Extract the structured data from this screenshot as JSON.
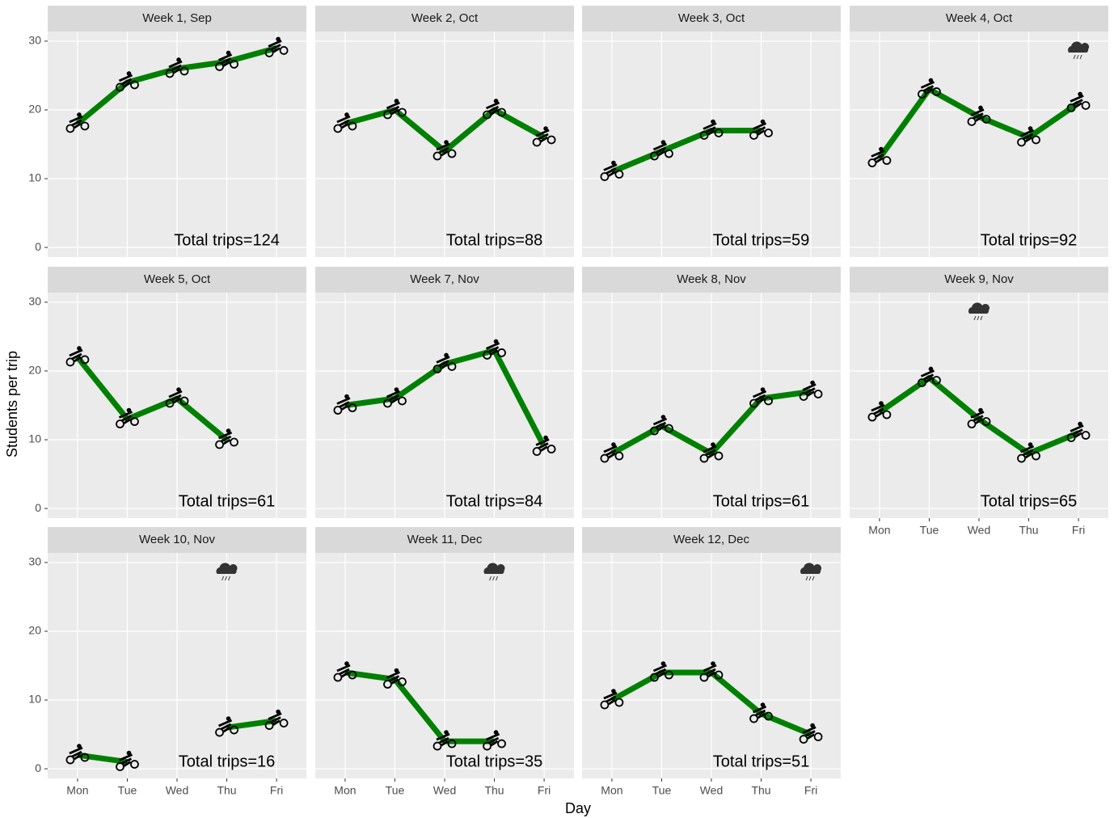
{
  "axis_labels": {
    "x": "Day",
    "y": "Students per trip"
  },
  "chart_data": [
    {
      "type": "line",
      "title": "Week 1, Sep",
      "categories": [
        "Mon",
        "Tue",
        "Wed",
        "Thu",
        "Fri"
      ],
      "values": [
        18,
        24,
        26,
        27,
        29
      ],
      "annotation": "Total trips=124",
      "rain": [],
      "color": "#008000",
      "ylim": [
        -1.4,
        31.4
      ],
      "yticks": [
        0,
        10,
        20,
        30
      ],
      "grid": true
    },
    {
      "type": "line",
      "title": "Week 2, Oct",
      "categories": [
        "Mon",
        "Tue",
        "Wed",
        "Thu",
        "Fri"
      ],
      "values": [
        18,
        20,
        14,
        20,
        16
      ],
      "annotation": "Total trips=88",
      "rain": [],
      "color": "#008000",
      "ylim": [
        -1.4,
        31.4
      ],
      "yticks": [
        0,
        10,
        20,
        30
      ],
      "grid": true
    },
    {
      "type": "line",
      "title": "Week 3, Oct",
      "categories": [
        "Mon",
        "Tue",
        "Wed",
        "Thu",
        "Fri"
      ],
      "values": [
        11,
        14,
        17,
        17,
        null
      ],
      "annotation": "Total trips=59",
      "rain": [],
      "color": "#008000",
      "ylim": [
        -1.4,
        31.4
      ],
      "yticks": [
        0,
        10,
        20,
        30
      ],
      "grid": true
    },
    {
      "type": "line",
      "title": "Week 4, Oct",
      "categories": [
        "Mon",
        "Tue",
        "Wed",
        "Thu",
        "Fri"
      ],
      "values": [
        13,
        23,
        19,
        16,
        21
      ],
      "annotation": "Total trips=92",
      "rain": [
        "Fri"
      ],
      "color": "#008000",
      "ylim": [
        -1.4,
        31.4
      ],
      "yticks": [
        0,
        10,
        20,
        30
      ],
      "grid": true
    },
    {
      "type": "line",
      "title": "Week 5, Oct",
      "categories": [
        "Mon",
        "Tue",
        "Wed",
        "Thu",
        "Fri"
      ],
      "values": [
        22,
        13,
        16,
        10,
        null
      ],
      "annotation": "Total trips=61",
      "rain": [],
      "color": "#008000",
      "ylim": [
        -1.4,
        31.4
      ],
      "yticks": [
        0,
        10,
        20,
        30
      ],
      "grid": true
    },
    {
      "type": "line",
      "title": "Week 7, Nov",
      "categories": [
        "Mon",
        "Tue",
        "Wed",
        "Thu",
        "Fri"
      ],
      "values": [
        15,
        16,
        21,
        23,
        9
      ],
      "annotation": "Total trips=84",
      "rain": [],
      "color": "#008000",
      "ylim": [
        -1.4,
        31.4
      ],
      "yticks": [
        0,
        10,
        20,
        30
      ],
      "grid": true
    },
    {
      "type": "line",
      "title": "Week 8, Nov",
      "categories": [
        "Mon",
        "Tue",
        "Wed",
        "Thu",
        "Fri"
      ],
      "values": [
        8,
        12,
        8,
        16,
        17
      ],
      "annotation": "Total trips=61",
      "rain": [],
      "color": "#008000",
      "ylim": [
        -1.4,
        31.4
      ],
      "yticks": [
        0,
        10,
        20,
        30
      ],
      "grid": true
    },
    {
      "type": "line",
      "title": "Week 9, Nov",
      "categories": [
        "Mon",
        "Tue",
        "Wed",
        "Thu",
        "Fri"
      ],
      "values": [
        14,
        19,
        13,
        8,
        11
      ],
      "annotation": "Total trips=65",
      "rain": [
        "Wed"
      ],
      "color": "#008000",
      "ylim": [
        -1.4,
        31.4
      ],
      "yticks": [
        0,
        10,
        20,
        30
      ],
      "grid": true
    },
    {
      "type": "line",
      "title": "Week 10, Nov",
      "categories": [
        "Mon",
        "Tue",
        "Wed",
        "Thu",
        "Fri"
      ],
      "values": [
        2,
        1,
        null,
        6,
        7
      ],
      "annotation": "Total trips=16",
      "rain": [
        "Thu"
      ],
      "color": "#008000",
      "ylim": [
        -1.4,
        31.4
      ],
      "yticks": [
        0,
        10,
        20,
        30
      ],
      "grid": true
    },
    {
      "type": "line",
      "title": "Week 11, Dec",
      "categories": [
        "Mon",
        "Tue",
        "Wed",
        "Thu",
        "Fri"
      ],
      "values": [
        14,
        13,
        4,
        4,
        null
      ],
      "annotation": "Total trips=35",
      "rain": [
        "Thu"
      ],
      "color": "#008000",
      "ylim": [
        -1.4,
        31.4
      ],
      "yticks": [
        0,
        10,
        20,
        30
      ],
      "grid": true
    },
    {
      "type": "line",
      "title": "Week 12, Dec",
      "categories": [
        "Mon",
        "Tue",
        "Wed",
        "Thu",
        "Fri"
      ],
      "values": [
        10,
        14,
        14,
        8,
        5
      ],
      "annotation": "Total trips=51",
      "rain": [
        "Fri"
      ],
      "color": "#008000",
      "ylim": [
        -1.4,
        31.4
      ],
      "yticks": [
        0,
        10,
        20,
        30
      ],
      "grid": true
    }
  ]
}
